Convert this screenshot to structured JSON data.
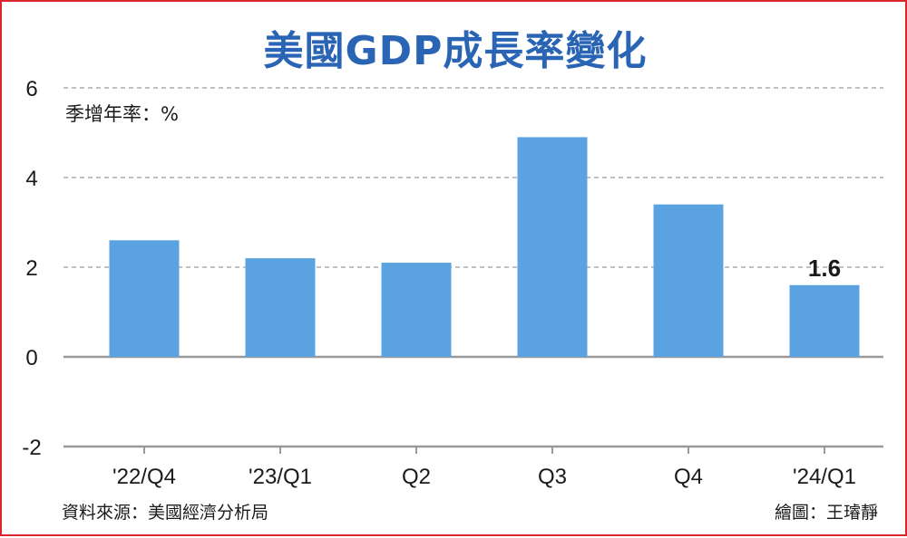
{
  "chart_data": {
    "type": "bar",
    "title": "美國GDP成長率變化",
    "unit_label": "季增年率：%",
    "categories": [
      "'22/Q4",
      "'23/Q1",
      "Q2",
      "Q3",
      "Q4",
      "'24/Q1"
    ],
    "values": [
      2.6,
      2.2,
      2.1,
      4.9,
      3.4,
      1.6
    ],
    "data_labels": [
      null,
      null,
      null,
      null,
      null,
      "1.6"
    ],
    "yticks": [
      "6",
      "4",
      "2",
      "0",
      "-2"
    ],
    "ylim": [
      -2,
      6
    ],
    "grid": "dashed-horizontal",
    "bar_color": "#5ba3e0",
    "source": "資料來源：美國經濟分析局",
    "credit": "繪圖：王璿靜"
  }
}
